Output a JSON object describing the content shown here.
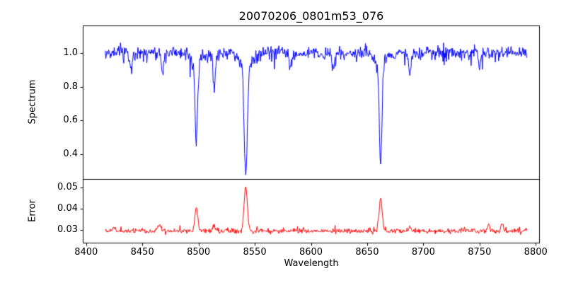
{
  "chart_data": {
    "type": "line",
    "title": "20070206_0801m53_076",
    "xlabel": "Wavelength",
    "x_axis": {
      "domain": [
        8397,
        8803
      ],
      "ticks": [
        8400,
        8450,
        8500,
        8550,
        8600,
        8650,
        8700,
        8750,
        8800
      ],
      "data_range": [
        8417,
        8792
      ],
      "sampling_step": 0.5
    },
    "panels": [
      {
        "name": "spectrum",
        "ylabel": "Spectrum",
        "color": "#0000ff",
        "ylim": [
          0.253,
          1.163
        ],
        "yticks": [
          0.4,
          0.6,
          0.8,
          1.0
        ],
        "tick_decimals": 1,
        "baseline": 1.0,
        "noise_sigma": 0.02,
        "spike_probability": 0.05,
        "spike_amplitude": -0.06,
        "seed": 20070206,
        "features": [
          {
            "center": 8498.0,
            "amplitude": -0.48,
            "sigma": 1.1,
            "wing_amplitude": -0.05,
            "wing_sigma": 4.0,
            "min_value": 0.51
          },
          {
            "center": 8542.0,
            "amplitude": -0.64,
            "sigma": 1.4,
            "wing_amplitude": -0.07,
            "wing_sigma": 6.0,
            "min_value": 0.35
          },
          {
            "center": 8662.0,
            "amplitude": -0.59,
            "sigma": 1.2,
            "wing_amplitude": -0.06,
            "wing_sigma": 5.0,
            "min_value": 0.4
          },
          {
            "center": 8440.0,
            "amplitude": -0.1,
            "sigma": 1.0
          },
          {
            "center": 8468.0,
            "amplitude": -0.12,
            "sigma": 1.0
          },
          {
            "center": 8514.0,
            "amplitude": -0.22,
            "sigma": 1.0
          },
          {
            "center": 8582.0,
            "amplitude": -0.08,
            "sigma": 1.0
          },
          {
            "center": 8620.0,
            "amplitude": -0.1,
            "sigma": 1.0
          },
          {
            "center": 8688.0,
            "amplitude": -0.13,
            "sigma": 1.0
          },
          {
            "center": 8750.0,
            "amplitude": -0.08,
            "sigma": 1.0
          }
        ]
      },
      {
        "name": "error",
        "ylabel": "Error",
        "color": "#ff0000",
        "ylim": [
          0.024,
          0.054
        ],
        "yticks": [
          0.03,
          0.04,
          0.05
        ],
        "tick_decimals": 2,
        "baseline": 0.0295,
        "noise_sigma": 0.0006,
        "spike_probability": 0.05,
        "spike_amplitude": 0.0015,
        "seed": 801,
        "features": [
          {
            "center": 8498.0,
            "amplitude": 0.0115,
            "sigma": 1.2,
            "peak_value": 0.041
          },
          {
            "center": 8542.0,
            "amplitude": 0.0215,
            "sigma": 1.4,
            "peak_value": 0.051
          },
          {
            "center": 8662.0,
            "amplitude": 0.0155,
            "sigma": 1.3,
            "peak_value": 0.045
          },
          {
            "center": 8425.0,
            "amplitude": 0.002,
            "sigma": 1.0
          },
          {
            "center": 8465.0,
            "amplitude": 0.0035,
            "sigma": 1.2
          },
          {
            "center": 8514.0,
            "amplitude": 0.0025,
            "sigma": 1.0
          },
          {
            "center": 8688.0,
            "amplitude": 0.0015,
            "sigma": 1.0
          },
          {
            "center": 8758.0,
            "amplitude": 0.0025,
            "sigma": 1.0
          },
          {
            "center": 8770.0,
            "amplitude": 0.0035,
            "sigma": 1.0
          }
        ]
      }
    ]
  }
}
